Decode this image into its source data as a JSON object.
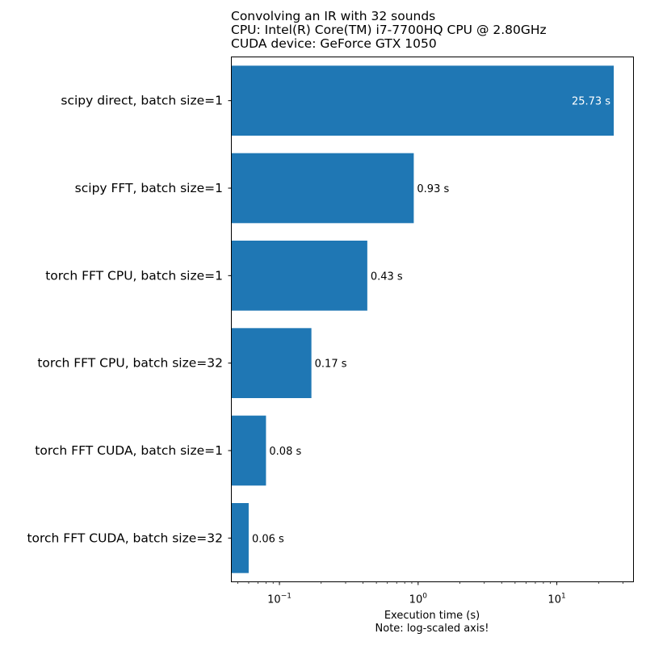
{
  "chart_data": {
    "type": "bar",
    "orientation": "horizontal",
    "title": [
      "Convolving an IR with 32 sounds",
      "CPU: Intel(R) Core(TM) i7-7700HQ CPU @ 2.80GHz",
      "CUDA device: GeForce GTX 1050"
    ],
    "categories": [
      "scipy direct, batch size=1",
      "scipy FFT, batch size=1",
      "torch FFT CPU, batch size=1",
      "torch FFT CPU, batch size=32",
      "torch FFT CUDA, batch size=1",
      "torch FFT CUDA, batch size=32"
    ],
    "values": [
      25.73,
      0.93,
      0.43,
      0.17,
      0.08,
      0.06
    ],
    "data_labels": [
      "25.73 s",
      "0.93 s",
      "0.43 s",
      "0.17 s",
      "0.08 s",
      "0.06 s"
    ],
    "xlabel": [
      "Execution time (s)",
      "Note: log-scaled axis!"
    ],
    "xscale": "log",
    "xlim": [
      0.045,
      35.7
    ],
    "xticks": [
      {
        "value": 0.1,
        "base": "10",
        "exp": "−1"
      },
      {
        "value": 1,
        "base": "10",
        "exp": "0"
      },
      {
        "value": 10,
        "base": "10",
        "exp": "1"
      }
    ],
    "bar_color": "#1f77b4",
    "grid": false
  }
}
